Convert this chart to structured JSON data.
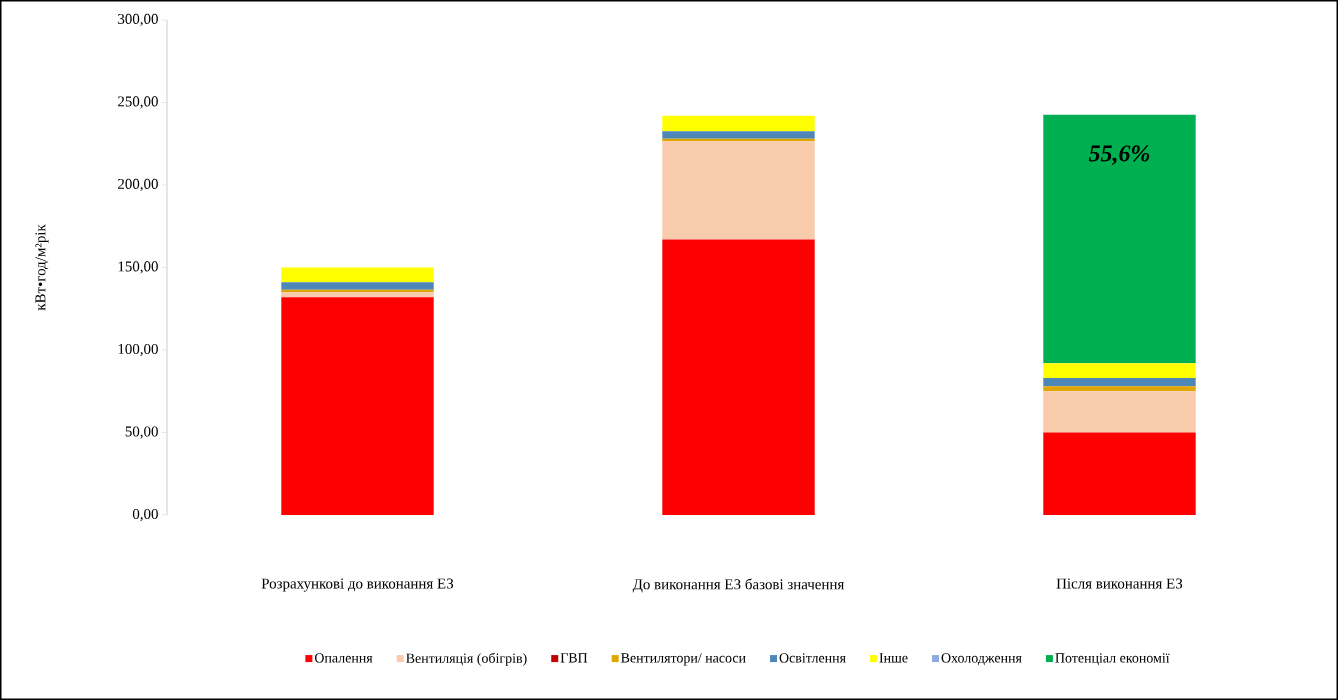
{
  "chart_data": {
    "type": "bar",
    "stacked": true,
    "ylabel": "кВт•год/м²рік",
    "categories": [
      "Розрахункові до виконання ЕЗ",
      "До виконання ЕЗ базові значення",
      "Після виконання ЕЗ"
    ],
    "series": [
      {
        "name": "Опалення",
        "color": "#ff0000",
        "values": [
          132,
          167,
          50
        ]
      },
      {
        "name": "Вентиляція (обігрів)",
        "color": "#f8cbad",
        "values": [
          3,
          59.5,
          25
        ]
      },
      {
        "name": "ГВП",
        "color": "#c00000",
        "values": [
          0,
          0,
          0
        ]
      },
      {
        "name": "Вентилятори/ насоси",
        "color": "#e0a600",
        "values": [
          1.5,
          1.5,
          3
        ]
      },
      {
        "name": "Освітлення",
        "color": "#4f86b8",
        "values": [
          4.5,
          4.5,
          5
        ]
      },
      {
        "name": "Інше",
        "color": "#ffff00",
        "values": [
          9,
          9.5,
          9
        ]
      },
      {
        "name": "Охолодження",
        "color": "#8faadc",
        "values": [
          0,
          0,
          0
        ]
      },
      {
        "name": "Потенціал економії",
        "color": "#00b050",
        "values": [
          0,
          0,
          150.5
        ]
      }
    ],
    "ylim": [
      0,
      300
    ],
    "yticks": [
      {
        "value": 0,
        "label": "0,00"
      },
      {
        "value": 50,
        "label": "50,00"
      },
      {
        "value": 100,
        "label": "100,00"
      },
      {
        "value": 150,
        "label": "150,00"
      },
      {
        "value": 200,
        "label": "200,00"
      },
      {
        "value": 250,
        "label": "250,00"
      },
      {
        "value": 300,
        "label": "300,00"
      }
    ],
    "annotations": [
      "55,6%"
    ],
    "legend": "bottom",
    "grid": false
  }
}
